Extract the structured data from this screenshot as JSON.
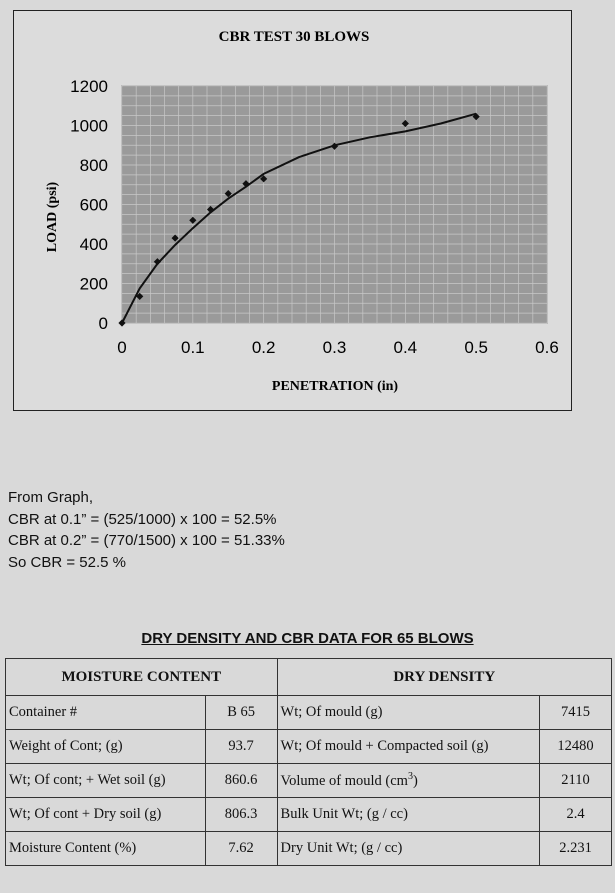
{
  "chart_data": {
    "type": "scatter",
    "title": "CBR TEST 30 BLOWS",
    "xlabel": "PENETRATION (in)",
    "ylabel": "LOAD (psi)",
    "xlim": [
      0,
      0.6
    ],
    "ylim": [
      0,
      1200
    ],
    "x_ticks": [
      "0",
      "0.1",
      "0.2",
      "0.3",
      "0.4",
      "0.5",
      "0.6"
    ],
    "y_ticks": [
      "0",
      "200",
      "400",
      "600",
      "800",
      "1000",
      "1200"
    ],
    "grid": true,
    "points": {
      "x": [
        0,
        0.025,
        0.05,
        0.075,
        0.1,
        0.125,
        0.15,
        0.175,
        0.2,
        0.3,
        0.4,
        0.5
      ],
      "y": [
        0,
        135,
        310,
        430,
        520,
        575,
        655,
        705,
        730,
        895,
        1010,
        1045
      ]
    },
    "trendline": {
      "x": [
        0,
        0.025,
        0.05,
        0.075,
        0.1,
        0.125,
        0.15,
        0.175,
        0.2,
        0.25,
        0.3,
        0.35,
        0.4,
        0.45,
        0.5
      ],
      "y": [
        0,
        175,
        300,
        395,
        480,
        560,
        630,
        690,
        755,
        840,
        900,
        940,
        970,
        1010,
        1060
      ]
    }
  },
  "notes": {
    "line1": "From Graph,",
    "line2": "CBR at 0.1” = (525/1000) x 100 = 52.5%",
    "line3": "CBR at 0.2” = (770/1500) x 100 = 51.33%",
    "line4": "So CBR = 52.5 %"
  },
  "table": {
    "title": "DRY DENSITY AND CBR DATA FOR 65 BLOWS",
    "left_header": "MOISTURE CONTENT",
    "right_header": "DRY DENSITY",
    "rows": [
      {
        "l_label": "Container #",
        "l_value": "B 65",
        "r_label": "Wt; Of mould (g)",
        "r_value": "7415"
      },
      {
        "l_label": "Weight of Cont; (g)",
        "l_value": "93.7",
        "r_label": "Wt; Of mould + Compacted soil  (g)",
        "r_value": "12480"
      },
      {
        "l_label": "Wt; Of cont; + Wet soil (g)",
        "l_value": "860.6",
        "r_label": "Volume of mould (cm",
        "r_sup": "3",
        "r_label_tail": ")",
        "r_value": "2110"
      },
      {
        "l_label": "Wt; Of cont + Dry soil (g)",
        "l_value": "806.3",
        "r_label": "Bulk Unit Wt; (g / cc)",
        "r_value": "2.4"
      },
      {
        "l_label": "Moisture Content (%)",
        "l_value": "7.62",
        "r_label": "Dry Unit Wt; (g / cc)",
        "r_value": "2.231"
      }
    ]
  }
}
